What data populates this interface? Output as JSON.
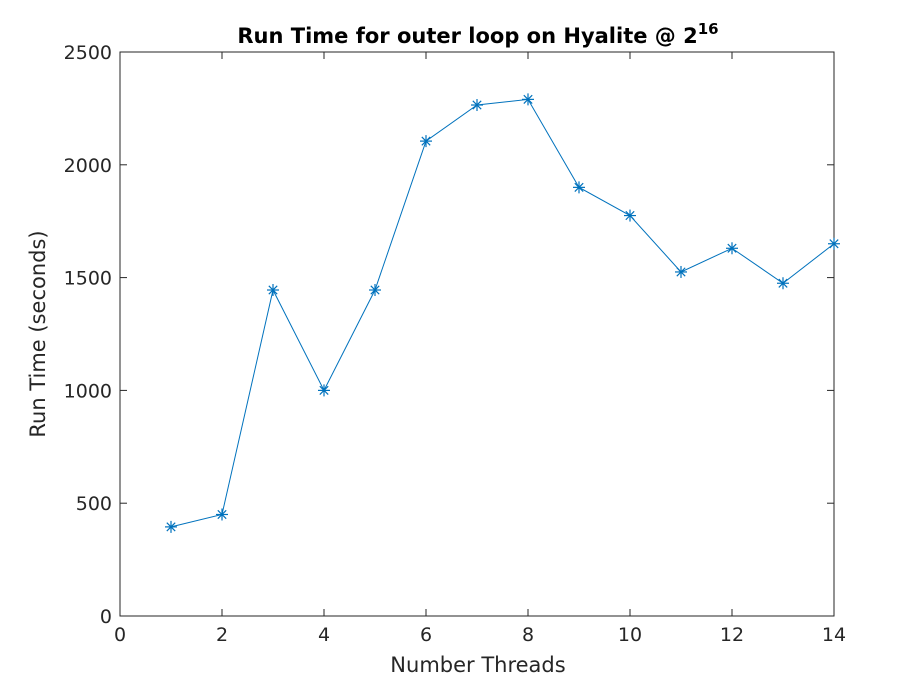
{
  "chart_data": {
    "type": "line",
    "title": "Run Time for outer loop on Hyalite @ 2",
    "title_superscript": "16",
    "xlabel": "Number Threads",
    "ylabel": "Run Time (seconds)",
    "xlim": [
      0,
      14
    ],
    "ylim": [
      0,
      2500
    ],
    "xticks": [
      0,
      2,
      4,
      6,
      8,
      10,
      12,
      14
    ],
    "yticks": [
      0,
      500,
      1000,
      1500,
      2000,
      2500
    ],
    "grid": false,
    "marker": "asterisk",
    "line_color": "#0072bd",
    "series": [
      {
        "x": [
          1,
          2,
          3,
          4,
          5,
          6,
          7,
          8,
          9,
          10,
          11,
          12,
          13,
          14
        ],
        "values": [
          395,
          450,
          1445,
          1000,
          1445,
          2105,
          2265,
          2290,
          1900,
          1775,
          1525,
          1630,
          1475,
          1650
        ]
      }
    ]
  }
}
